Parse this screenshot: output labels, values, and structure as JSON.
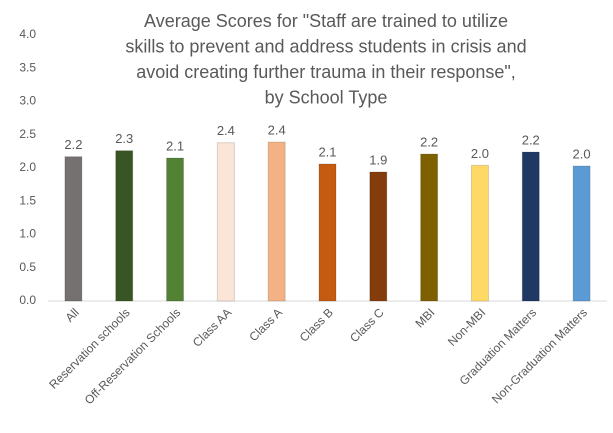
{
  "chart_data": {
    "type": "bar",
    "title": [
      "Average Scores for \"Staff are trained to utilize",
      "skills to prevent and address students in crisis and",
      "avoid creating further trauma in their response\",",
      "by School Type"
    ],
    "categories": [
      "All",
      "Reservation schools",
      "Off-Reservation Schools",
      "Class AA",
      "Class A",
      "Class B",
      "Class C",
      "MBI",
      "Non-MBI",
      "Graduation Matters",
      "Non-Graduation Matters"
    ],
    "values": [
      2.17,
      2.26,
      2.15,
      2.38,
      2.39,
      2.06,
      1.94,
      2.21,
      2.04,
      2.24,
      2.03
    ],
    "value_labels": [
      "2.2",
      "2.3",
      "2.1",
      "2.4",
      "2.4",
      "2.1",
      "1.9",
      "2.2",
      "2.0",
      "2.2",
      "2.0"
    ],
    "colors": [
      "#767171",
      "#375623",
      "#548235",
      "#fbe5d6",
      "#f4b183",
      "#c55a11",
      "#843c0c",
      "#7f6000",
      "#ffd966",
      "#203864",
      "#5b9bd5"
    ],
    "ylim": [
      0,
      4
    ],
    "yticks": [
      {
        "value": 0,
        "label": "0.0"
      },
      {
        "value": 0.5,
        "label": "0.5"
      },
      {
        "value": 1,
        "label": "1.0"
      },
      {
        "value": 1.5,
        "label": "1.5"
      },
      {
        "value": 2,
        "label": "2.0"
      },
      {
        "value": 2.5,
        "label": "2.5"
      },
      {
        "value": 3,
        "label": "3.0"
      },
      {
        "value": 3.5,
        "label": "3.5"
      },
      {
        "value": 4,
        "label": "4.0"
      }
    ],
    "grid": false
  }
}
